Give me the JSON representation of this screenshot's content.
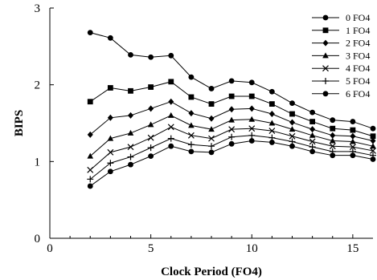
{
  "chart_data": {
    "type": "line",
    "xlabel": "Clock Period (FO4)",
    "ylabel": "BIPS",
    "xlim": [
      0,
      16
    ],
    "ylim": [
      0,
      3
    ],
    "xticks": [
      0,
      5,
      10,
      15
    ],
    "yticks": [
      0,
      1,
      2,
      3
    ],
    "grid": false,
    "legend_position": "top-right",
    "x": [
      2,
      3,
      4,
      5,
      6,
      7,
      8,
      9,
      10,
      11,
      12,
      13,
      14,
      15,
      16
    ],
    "series": [
      {
        "name": "0 FO4",
        "marker": "circle",
        "values": [
          2.68,
          2.61,
          2.39,
          2.36,
          2.38,
          2.1,
          1.95,
          2.05,
          2.03,
          1.91,
          1.76,
          1.64,
          1.54,
          1.52,
          1.43
        ]
      },
      {
        "name": "1 FO4",
        "marker": "square",
        "values": [
          1.78,
          1.96,
          1.92,
          1.97,
          2.04,
          1.84,
          1.75,
          1.85,
          1.85,
          1.75,
          1.62,
          1.52,
          1.43,
          1.41,
          1.33
        ]
      },
      {
        "name": "2 FO4",
        "marker": "diamond",
        "values": [
          1.35,
          1.57,
          1.6,
          1.69,
          1.78,
          1.63,
          1.56,
          1.68,
          1.69,
          1.62,
          1.51,
          1.42,
          1.34,
          1.33,
          1.27
        ]
      },
      {
        "name": "3 FO4",
        "marker": "triangle",
        "values": [
          1.07,
          1.3,
          1.37,
          1.48,
          1.6,
          1.47,
          1.42,
          1.54,
          1.55,
          1.5,
          1.42,
          1.34,
          1.27,
          1.26,
          1.2
        ]
      },
      {
        "name": "4 FO4",
        "marker": "x",
        "values": [
          0.89,
          1.12,
          1.19,
          1.31,
          1.45,
          1.34,
          1.3,
          1.42,
          1.43,
          1.4,
          1.33,
          1.26,
          1.2,
          1.19,
          1.14
        ]
      },
      {
        "name": "5 FO4",
        "marker": "plus",
        "values": [
          0.77,
          0.98,
          1.06,
          1.18,
          1.3,
          1.22,
          1.2,
          1.32,
          1.34,
          1.31,
          1.26,
          1.19,
          1.13,
          1.13,
          1.08
        ]
      },
      {
        "name": "6 FO4",
        "marker": "circle",
        "values": [
          0.68,
          0.87,
          0.96,
          1.07,
          1.2,
          1.13,
          1.12,
          1.23,
          1.27,
          1.25,
          1.2,
          1.13,
          1.08,
          1.08,
          1.03
        ]
      }
    ]
  }
}
